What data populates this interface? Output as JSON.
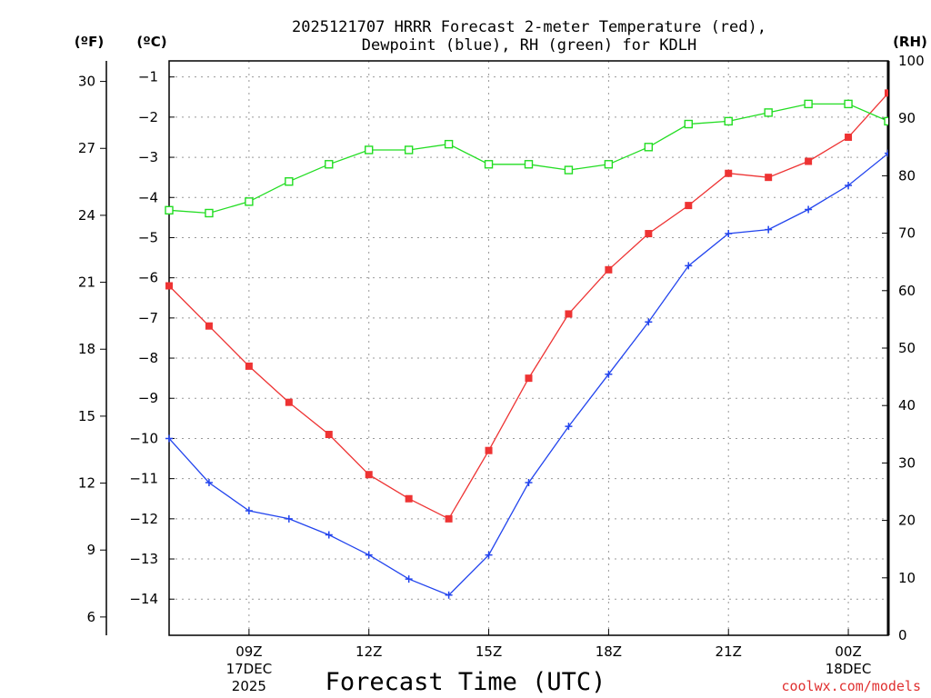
{
  "chart_data": {
    "type": "line",
    "title_lines": [
      "2025121707 HRRR Forecast 2-meter Temperature (red),",
      "Dewpoint (blue), RH (green) for KDLH"
    ],
    "xlabel": "Forecast Time (UTC)",
    "left_axis_unit": "(ºF)",
    "mid_axis_unit": "(ºC)",
    "right_axis_unit": "(RH)",
    "credit": "coolwx.com/models",
    "grid": true,
    "x_range": [
      7,
      25
    ],
    "celsius_range": [
      -14.9,
      -0.6
    ],
    "fahrenheit_ticks": [
      "30",
      "27",
      "24",
      "21",
      "18",
      "15",
      "12",
      "9",
      "6"
    ],
    "celsius_ticks": [
      "-1",
      "-2",
      "-3",
      "-4",
      "-5",
      "-6",
      "-7",
      "-8",
      "-9",
      "-10",
      "-11",
      "-12",
      "-13",
      "-14"
    ],
    "rh_ticks": [
      "100",
      "90",
      "80",
      "70",
      "60",
      "50",
      "40",
      "30",
      "20",
      "10",
      "0"
    ],
    "x_ticks": [
      {
        "hour": 9,
        "lines": [
          "09Z",
          "17DEC",
          "2025"
        ]
      },
      {
        "hour": 12,
        "lines": [
          "12Z"
        ]
      },
      {
        "hour": 15,
        "lines": [
          "15Z"
        ]
      },
      {
        "hour": 18,
        "lines": [
          "18Z"
        ]
      },
      {
        "hour": 21,
        "lines": [
          "21Z"
        ]
      },
      {
        "hour": 24,
        "lines": [
          "00Z",
          "18DEC"
        ]
      }
    ],
    "x": [
      7,
      8,
      9,
      10,
      11,
      12,
      13,
      14,
      15,
      16,
      17,
      18,
      19,
      20,
      21,
      22,
      23,
      24,
      25
    ],
    "series": [
      {
        "name": "Temperature",
        "unit": "C",
        "color": "#ee3333",
        "marker": "filled-square",
        "values": [
          -6.2,
          -7.2,
          -8.2,
          -9.1,
          -9.9,
          -10.9,
          -11.5,
          -12.0,
          -10.3,
          -8.5,
          -6.9,
          -5.8,
          -4.9,
          -4.2,
          -3.4,
          -3.5,
          -3.1,
          -2.5,
          -1.4
        ]
      },
      {
        "name": "Dewpoint",
        "unit": "C",
        "color": "#2244ee",
        "marker": "plus",
        "values": [
          -10.0,
          -11.1,
          -11.8,
          -12.0,
          -12.4,
          -12.9,
          -13.5,
          -13.9,
          -12.9,
          -11.1,
          -9.7,
          -8.4,
          -7.1,
          -5.7,
          -4.9,
          -4.8,
          -4.3,
          -3.7,
          -2.9
        ]
      },
      {
        "name": "RH",
        "unit": "%",
        "color": "#22dd22",
        "marker": "open-square",
        "values": [
          74,
          73.5,
          75.5,
          79,
          82,
          84.5,
          84.5,
          85.5,
          82,
          82,
          81,
          82,
          85,
          89,
          89.5,
          91,
          92.5,
          92.5,
          89.5
        ]
      }
    ]
  }
}
